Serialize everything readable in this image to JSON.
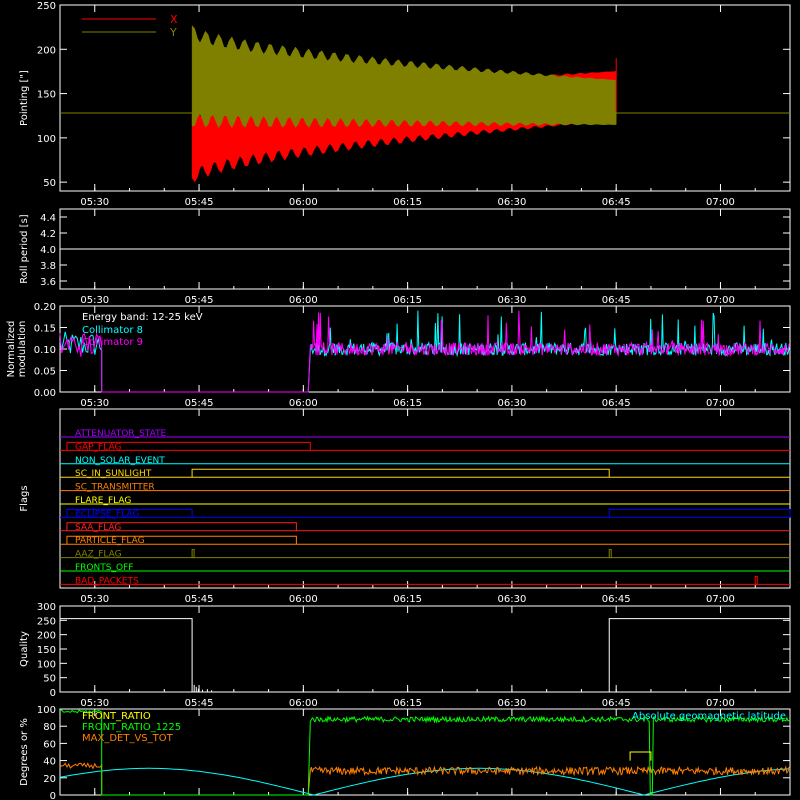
{
  "x_axis": {
    "tick_labels": [
      "05:30",
      "05:45",
      "06:00",
      "06:15",
      "06:30",
      "06:45",
      "07:00"
    ]
  },
  "chart_data": [
    {
      "type": "line",
      "ylabel": "Pointing [\"]",
      "ylim": [
        40,
        250
      ],
      "yticks": [
        "50",
        "100",
        "150",
        "200",
        "250"
      ],
      "legend": [
        {
          "name": "X",
          "color": "#ff0000"
        },
        {
          "name": "Y",
          "color": "#808000"
        }
      ],
      "series": [
        {
          "name": "X",
          "color": "#ff0000",
          "baseline": 128,
          "active_start": "05:44",
          "active_end": "06:45",
          "envelope_start": [
            55,
            125
          ],
          "envelope_end": [
            120,
            175
          ]
        },
        {
          "name": "Y",
          "color": "#808000",
          "baseline": 128,
          "active_start": "05:44",
          "active_end": "06:45",
          "envelope_start": [
            120,
            220
          ],
          "envelope_end": [
            115,
            165
          ]
        }
      ]
    },
    {
      "type": "line",
      "ylabel": "Roll period [s]",
      "ylim": [
        3.5,
        4.5
      ],
      "yticks": [
        "3.6",
        "3.8",
        "4.0",
        "4.2",
        "4.4"
      ],
      "series": [
        {
          "name": "",
          "color": "#ffffff",
          "value": 4.0
        }
      ]
    },
    {
      "type": "line",
      "ylabel": "Normalized modulation",
      "ylim": [
        0.0,
        0.2
      ],
      "yticks": [
        "0.00",
        "0.05",
        "0.10",
        "0.15",
        "0.20"
      ],
      "annotation": "Energy band: 12-25 keV",
      "legend": [
        {
          "name": "Collimator 8",
          "color": "#00ffff"
        },
        {
          "name": "Collimator 9",
          "color": "#ff00ff"
        }
      ],
      "series": [
        {
          "name": "Collimator 8",
          "color": "#00ffff",
          "gap_start": "05:31",
          "gap_end": "06:01",
          "mean": 0.1
        },
        {
          "name": "Collimator 9",
          "color": "#ff00ff",
          "gap_start": "05:31",
          "gap_end": "06:01",
          "mean": 0.1
        }
      ]
    },
    {
      "type": "line",
      "ylabel": "Flags",
      "series": [
        {
          "name": "ATTENUATOR_STATE",
          "color": "#a000ff",
          "segments": []
        },
        {
          "name": "GAP_FLAG",
          "color": "#ff0000",
          "segments": [
            [
              "05:26",
              "06:01"
            ]
          ]
        },
        {
          "name": "NON_SOLAR_EVENT",
          "color": "#00ffff",
          "segments": []
        },
        {
          "name": "SC_IN_SUNLIGHT",
          "color": "#ffd700",
          "segments": [
            [
              "05:44",
              "06:44"
            ]
          ]
        },
        {
          "name": "SC_TRANSMITTER",
          "color": "#ff8000",
          "segments": []
        },
        {
          "name": "FLARE_FLAG",
          "color": "#ffff00",
          "segments": []
        },
        {
          "name": "ECLIPSE_FLAG",
          "color": "#0000ff",
          "segments": [
            [
              "05:26",
              "05:44"
            ],
            [
              "06:44",
              "07:10"
            ]
          ]
        },
        {
          "name": "SAA_FLAG",
          "color": "#ff2020",
          "segments": [
            [
              "05:26",
              "05:59"
            ]
          ]
        },
        {
          "name": "PARTICLE_FLAG",
          "color": "#ff8000",
          "segments": [
            [
              "05:26",
              "05:59"
            ]
          ]
        },
        {
          "name": "AAZ_FLAG",
          "color": "#808000",
          "segments": [
            [
              "05:44",
              "05:44"
            ],
            [
              "06:44",
              "06:44"
            ]
          ]
        },
        {
          "name": "FRONTS_OFF",
          "color": "#00ff00",
          "segments": []
        },
        {
          "name": "BAD_PACKETS",
          "color": "#ff0000",
          "segments": [
            [
              "07:05",
              "07:05"
            ]
          ]
        }
      ]
    },
    {
      "type": "line",
      "ylabel": "Quality",
      "ylim": [
        0,
        300
      ],
      "yticks": [
        "0",
        "50",
        "100",
        "150",
        "200",
        "250",
        "300"
      ],
      "series": [
        {
          "name": "",
          "color": "#ffffff",
          "high_value": 256,
          "low_start": "05:44",
          "low_end": "06:44"
        }
      ]
    },
    {
      "type": "line",
      "ylabel": "Degrees or %",
      "ylim": [
        0,
        100
      ],
      "yticks": [
        "0",
        "20",
        "40",
        "60",
        "80",
        "100"
      ],
      "legend": [
        {
          "name": "FRONT_RATIO",
          "color": "#ffff00"
        },
        {
          "name": "FRONT_RATIO_1225",
          "color": "#00ff00"
        },
        {
          "name": "MAX_DET_VS_TOT",
          "color": "#ff8000"
        }
      ],
      "right_legend": {
        "name": "Absolute geomagnetic latitude",
        "color": "#00ffff"
      },
      "series": [
        {
          "name": "FRONT_RATIO",
          "color": "#ffff00"
        },
        {
          "name": "FRONT_RATIO_1225",
          "color": "#00ff00",
          "gap_start": "05:31",
          "gap_end": "06:01",
          "level": 88
        },
        {
          "name": "MAX_DET_VS_TOT",
          "color": "#ff8000",
          "gap_start": "05:31",
          "gap_end": "06:01",
          "level": 28
        },
        {
          "name": "Absolute geomagnetic latitude",
          "color": "#00ffff",
          "peak": 31
        }
      ]
    }
  ]
}
